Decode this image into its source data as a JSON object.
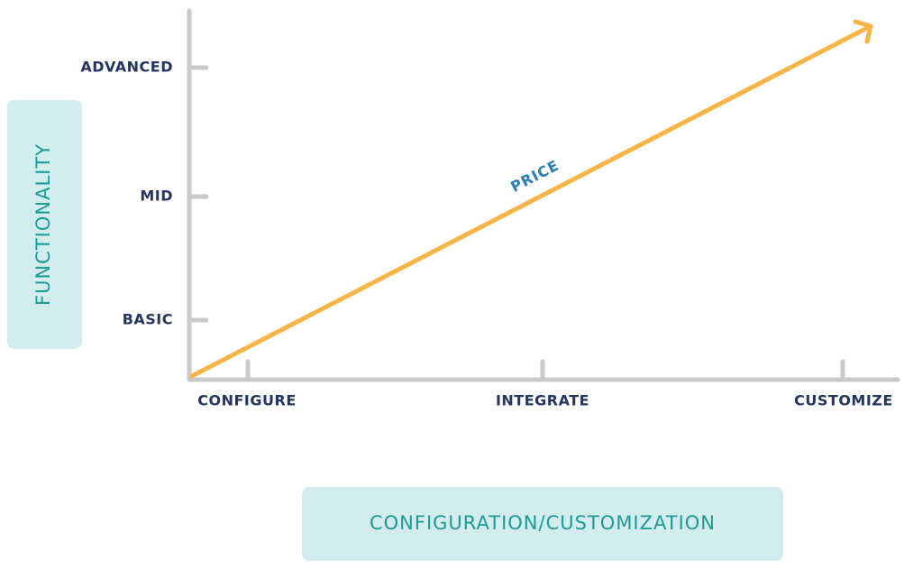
{
  "y_axis": {
    "label": "FUNCTIONALITY",
    "levels": [
      "ADVANCED",
      "MID",
      "BASIC"
    ]
  },
  "x_axis": {
    "label": "CONFIGURATION/CUSTOMIZATION",
    "levels": [
      "CONFIGURE",
      "INTEGRATE",
      "CUSTOMIZE"
    ]
  },
  "trend": {
    "label": "PRICE"
  }
}
